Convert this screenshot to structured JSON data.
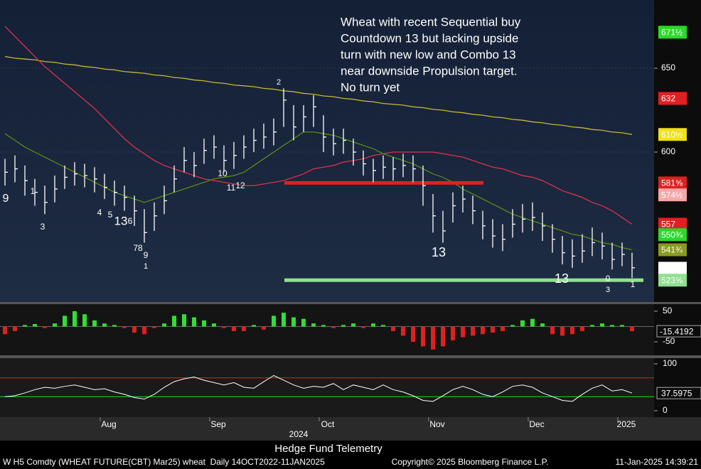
{
  "chart_data": [
    {
      "type": "ohlc",
      "annotation": [
        "Wheat with recent Sequential buy",
        "Countdown 13 but lacking upside",
        "turn with new low and Combo 13",
        "near downside Propulsion target.",
        "No turn yet"
      ],
      "categories": [
        null,
        null,
        null,
        null,
        null,
        null,
        null,
        null,
        null,
        null,
        null,
        "Aug",
        null,
        null,
        null,
        null,
        null,
        null,
        null,
        null,
        null,
        null,
        "Sep",
        null,
        null,
        null,
        null,
        null,
        null,
        null,
        null,
        null,
        null,
        "Oct",
        null,
        null,
        null,
        null,
        null,
        null,
        null,
        null,
        null,
        null,
        "Nov",
        null,
        null,
        null,
        null,
        null,
        null,
        null,
        null,
        null,
        "Dec",
        null,
        null,
        null,
        null,
        null,
        null,
        null,
        null,
        "2025"
      ],
      "year": "2024",
      "high": [
        596,
        598,
        592,
        584,
        580,
        586,
        592,
        594,
        593,
        591,
        587,
        583,
        580,
        574,
        566,
        570,
        580,
        592,
        603,
        600,
        608,
        610,
        604,
        606,
        610,
        614,
        617,
        620,
        638,
        628,
        628,
        634,
        622,
        614,
        614,
        608,
        601,
        596,
        598,
        597,
        599,
        598,
        592,
        575,
        565,
        576,
        580,
        574,
        565,
        560,
        557,
        566,
        569,
        570,
        564,
        557,
        550,
        548,
        551,
        555,
        552,
        546,
        546,
        540
      ],
      "low": [
        580,
        582,
        574,
        568,
        563,
        570,
        578,
        580,
        579,
        576,
        572,
        568,
        565,
        556,
        546,
        553,
        563,
        576,
        588,
        585,
        593,
        596,
        588,
        590,
        596,
        600,
        602,
        604,
        615,
        607,
        612,
        615,
        600,
        598,
        599,
        592,
        586,
        582,
        584,
        583,
        585,
        582,
        568,
        552,
        546,
        558,
        564,
        557,
        548,
        543,
        541,
        549,
        552,
        553,
        547,
        540,
        533,
        531,
        534,
        538,
        536,
        530,
        532,
        525
      ],
      "close": [
        588,
        590,
        583,
        576,
        570,
        578,
        585,
        587,
        586,
        584,
        579,
        576,
        573,
        565,
        552,
        562,
        571,
        584,
        595,
        592,
        601,
        603,
        595,
        598,
        603,
        607,
        609,
        612,
        631,
        615,
        621,
        627,
        609,
        605,
        607,
        600,
        593,
        589,
        591,
        590,
        592,
        590,
        580,
        562,
        553,
        568,
        572,
        565,
        556,
        550,
        548,
        557,
        560,
        561,
        556,
        548,
        540,
        538,
        541,
        546,
        544,
        536,
        539,
        531
      ],
      "bar_color": "#ffffff",
      "overlays": [
        {
          "color": "#c8b830",
          "values": [
            657,
            656,
            655.5,
            655,
            654,
            653.5,
            652.5,
            652,
            651,
            650.5,
            649.5,
            649,
            648,
            647.5,
            647,
            646,
            645.5,
            644.5,
            644,
            643,
            642.5,
            641.5,
            641,
            640,
            639.5,
            639,
            638,
            637.5,
            636.5,
            636,
            635,
            634.5,
            633.5,
            633,
            632,
            631.5,
            630.5,
            630,
            629,
            628.5,
            628,
            627,
            626.5,
            625.5,
            625,
            624,
            623.5,
            622.5,
            622,
            621,
            620.5,
            619.5,
            619,
            618,
            617.5,
            616.5,
            616,
            615,
            614.5,
            613.5,
            613,
            612,
            611.5,
            610.5
          ]
        },
        {
          "color": "#e0304a",
          "values": [
            675,
            669,
            663,
            657,
            651,
            646,
            641,
            636,
            631,
            626,
            620,
            614,
            608,
            603,
            599,
            595,
            592,
            590,
            588,
            586,
            584,
            583,
            582,
            581,
            580,
            580,
            581,
            582,
            583,
            585,
            587,
            590,
            591,
            592,
            594,
            595,
            596,
            598,
            599,
            600,
            600,
            600,
            600,
            600,
            599,
            598,
            597,
            595,
            593,
            591,
            590,
            588,
            586,
            585,
            583,
            580,
            577,
            575,
            573,
            570,
            568,
            565,
            561,
            557
          ]
        },
        {
          "color": "#5a8a1a",
          "values": [
            611,
            607,
            603,
            600,
            597,
            594,
            591,
            588,
            585,
            582,
            579,
            576,
            574,
            572,
            570,
            572,
            574,
            576,
            578,
            580,
            582,
            584,
            585,
            586,
            588,
            592,
            596,
            600,
            604,
            608,
            612,
            612,
            611,
            610,
            608,
            606,
            604,
            602,
            599,
            597,
            595,
            593,
            590,
            587,
            585,
            582,
            578,
            575,
            572,
            569,
            566,
            563,
            561,
            559,
            557,
            555,
            553,
            551,
            550,
            548,
            546,
            545,
            543,
            541.75
          ]
        }
      ],
      "ylim": [
        510.6,
        690.7
      ],
      "yticks": [
        600,
        650
      ],
      "price_tags": [
        {
          "value": 671.5,
          "label": "671½",
          "color": "#2bd92b",
          "text_color": "#000000"
        },
        {
          "value": 632,
          "label": "632",
          "color": "#e02020",
          "text_color": "#ffffff"
        },
        {
          "value": 610.5,
          "label": "610½",
          "color": "#f0e020",
          "text_color": "#000000"
        },
        {
          "value": 581.625,
          "label": "581⅝",
          "color": "#e02020",
          "text_color": "#ffffff"
        },
        {
          "value": 574.5,
          "label": "574½",
          "color": "#f4a8a8",
          "text_color": "#000000"
        },
        {
          "value": 557,
          "label": "557",
          "color": "#e02020",
          "text_color": "#ffffff"
        },
        {
          "value": 550.75,
          "label": "550¾",
          "color": "#2bd92b",
          "text_color": "#000000"
        },
        {
          "value": 541.75,
          "label": "541¾",
          "color": "#8a9a20",
          "text_color": "#ffffff"
        },
        {
          "value": 530.75,
          "label": "530¾",
          "color": "#ffffff",
          "text_color": "#000000"
        },
        {
          "value": 523.625,
          "label": "523⅝",
          "color": "#90e090",
          "text_color": "#000000"
        }
      ],
      "count_labels": [
        {
          "text": "9",
          "color": "#33dd33"
        },
        {
          "text": "1",
          "color": "#ff3030"
        },
        {
          "text": "3",
          "color": "#ff3030"
        },
        {
          "text": "4",
          "color": "#ff3030"
        },
        {
          "text": "5",
          "color": "#ff3030"
        },
        {
          "text": "13",
          "color": "#e08a1a"
        },
        {
          "text": "6",
          "color": "#ff3030"
        },
        {
          "text": "78",
          "color": "#ff3030"
        },
        {
          "text": "9",
          "color": "#ff3030"
        },
        {
          "text": "1",
          "color": "#e0e040"
        },
        {
          "text": "10",
          "color": "#ff3030"
        },
        {
          "text": "11",
          "color": "#ff3030"
        },
        {
          "text": "12",
          "color": "#ff3030"
        },
        {
          "text": "2",
          "color": "#e0e040"
        },
        {
          "text": "13",
          "color": "#ff3030"
        },
        {
          "text": "13",
          "color": "#c040c0"
        },
        {
          "text": "0",
          "color": "#40c0e0"
        },
        {
          "text": "3",
          "color": "#e0e040"
        },
        {
          "text": "1",
          "color": "#33dd33"
        }
      ]
    },
    {
      "type": "bar",
      "values": [
        -25,
        -15,
        5,
        8,
        -5,
        10,
        35,
        50,
        40,
        20,
        10,
        5,
        -5,
        -20,
        -25,
        -5,
        10,
        35,
        40,
        30,
        20,
        10,
        -5,
        -15,
        -15,
        5,
        -10,
        35,
        45,
        30,
        25,
        10,
        5,
        -5,
        5,
        10,
        -5,
        10,
        5,
        -15,
        -30,
        -50,
        -65,
        -75,
        -65,
        -45,
        -35,
        -30,
        -25,
        -20,
        -15,
        5,
        20,
        25,
        10,
        -25,
        -30,
        -25,
        -15,
        5,
        10,
        5,
        5,
        -15.4192
      ],
      "positive_color": "#33dd33",
      "negative_color": "#e02020",
      "ylim": [
        -94,
        73
      ],
      "yticks": [
        50,
        -50
      ]
    },
    {
      "type": "line",
      "values": [
        30,
        32,
        38,
        45,
        50,
        48,
        52,
        55,
        50,
        45,
        47,
        40,
        35,
        28,
        25,
        35,
        50,
        62,
        68,
        72,
        65,
        60,
        55,
        60,
        50,
        48,
        62,
        75,
        65,
        55,
        48,
        52,
        50,
        58,
        45,
        55,
        50,
        45,
        55,
        45,
        40,
        32,
        22,
        20,
        32,
        45,
        52,
        45,
        35,
        30,
        40,
        52,
        55,
        50,
        38,
        30,
        22,
        20,
        35,
        48,
        55,
        42,
        45,
        37.5975
      ],
      "color": "#ffffff",
      "levels": [
        {
          "value": 70,
          "color": "#e02020"
        },
        {
          "value": 30,
          "color": "#2bd92b"
        }
      ],
      "ylim": [
        -13.6,
        110.6
      ],
      "yticks": [
        100,
        0
      ]
    }
  ],
  "footer": {
    "brand": "Hedge Fund Telemetry",
    "security": "W H5 Comdty (WHEAT FUTURE(CBT) Mar25) wheat  Daily 14OCT2022-11JAN2025",
    "copyright": "Copyright© 2025 Bloomberg Finance L.P.",
    "timestamp": "11-Jan-2025 14:39:21"
  }
}
